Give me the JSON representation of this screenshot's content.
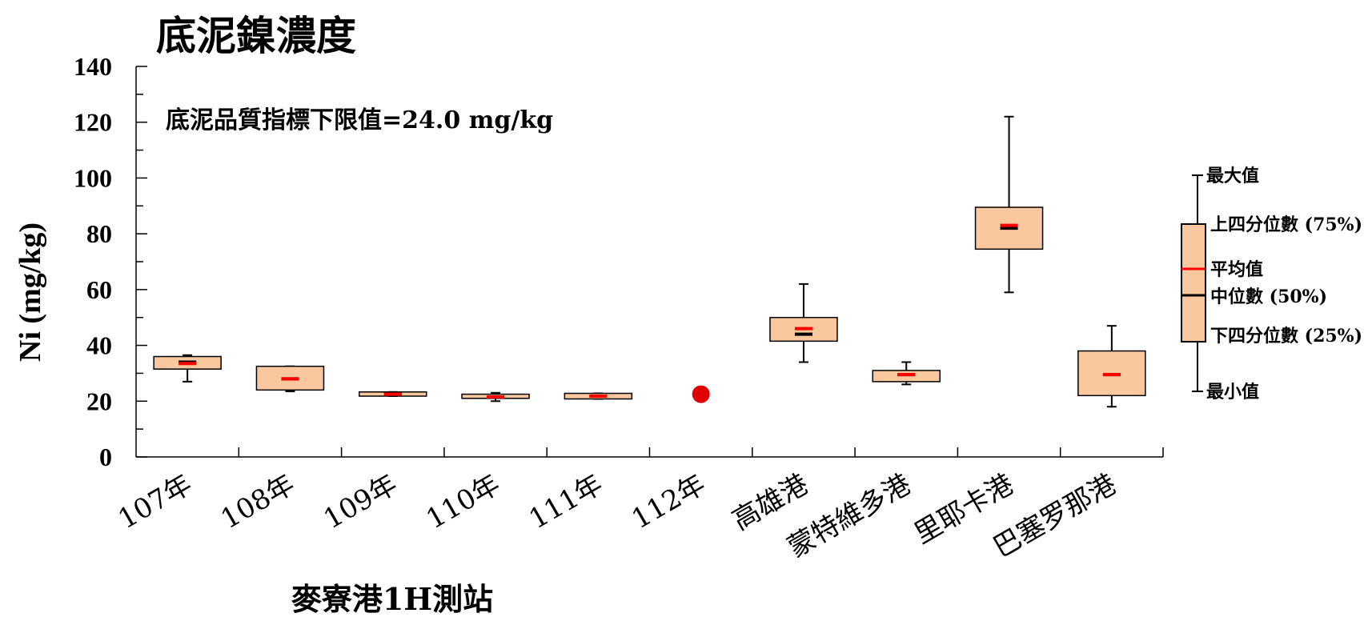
{
  "title": "底泥鎳濃度",
  "note": "底泥品質指標下限值=24.0 mg/kg",
  "x_group_label": "麥寮港1H測站",
  "colors": {
    "box_fill": "#FAC89E",
    "box_stroke": "#000000",
    "mean": "#FF0000",
    "median": "#000000",
    "point": "#E00000"
  },
  "legend": {
    "max": "最大值",
    "q3": "上四分位數 (75%)",
    "mean": "平均值",
    "median": "中位數 (50%)",
    "q1": "下四分位數 (25%)",
    "min": "最小值"
  },
  "chart_data": {
    "type": "box",
    "title": "底泥鎳濃度",
    "ylabel": "Ni (mg/kg)",
    "xlabel": "麥寮港1H測站",
    "ylim": [
      0,
      140
    ],
    "y_ticks": [
      0,
      20,
      40,
      60,
      80,
      100,
      120,
      140
    ],
    "reference_line": {
      "label": "底泥品質指標下限值=24.0 mg/kg",
      "value": 24.0
    },
    "categories": [
      "107年",
      "108年",
      "109年",
      "110年",
      "111年",
      "112年",
      "高雄港",
      "蒙特維多港",
      "里耶卡港",
      "巴塞罗那港"
    ],
    "boxes": [
      {
        "category": "107年",
        "min": 27,
        "q1": 31.5,
        "median": 34,
        "mean": 33.5,
        "q3": 36,
        "max": 36.5
      },
      {
        "category": "108年",
        "min": 23.5,
        "q1": 24,
        "median": 28,
        "mean": 28,
        "q3": 32.5,
        "max": 32.5
      },
      {
        "category": "109年",
        "min": 21.8,
        "q1": 21.8,
        "median": 22.5,
        "mean": 22.5,
        "q3": 23.3,
        "max": 23.3
      },
      {
        "category": "110年",
        "min": 20,
        "q1": 21,
        "median": 21.5,
        "mean": 21.5,
        "q3": 22.5,
        "max": 23
      },
      {
        "category": "111年",
        "min": 20.8,
        "q1": 20.8,
        "median": 21.8,
        "mean": 21.8,
        "q3": 22.8,
        "max": 22.8
      },
      {
        "category": "112年",
        "value": 22.5,
        "single_point": true
      },
      {
        "category": "高雄港",
        "min": 34,
        "q1": 41.5,
        "median": 44,
        "mean": 46,
        "q3": 50,
        "max": 62
      },
      {
        "category": "蒙特維多港",
        "min": 26,
        "q1": 27,
        "median": 29.5,
        "mean": 29.5,
        "q3": 31,
        "max": 34
      },
      {
        "category": "里耶卡港",
        "min": 59,
        "q1": 74.5,
        "median": 82,
        "mean": 83,
        "q3": 89.5,
        "max": 122
      },
      {
        "category": "巴塞罗那港",
        "min": 18,
        "q1": 22,
        "median": 29.5,
        "mean": 29.5,
        "q3": 38,
        "max": 47
      }
    ]
  }
}
